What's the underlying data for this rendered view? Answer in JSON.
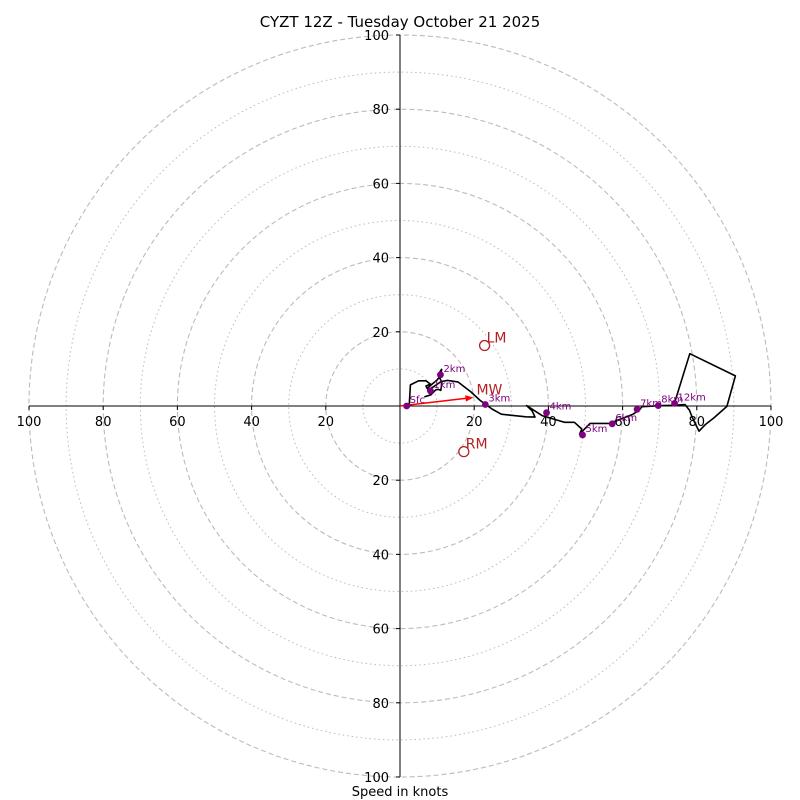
{
  "chart_data": {
    "type": "hodograph",
    "title": "CYZT 12Z - Tuesday October 21 2025",
    "xlabel": "Speed in knots",
    "xlim": [
      -100,
      100
    ],
    "ylim": [
      -100,
      100
    ],
    "ring_major": [
      20,
      40,
      60,
      80,
      100
    ],
    "ring_minor": [
      10,
      30,
      50,
      70,
      90
    ],
    "ticks": {
      "x": [
        {
          "v": -100,
          "label": "100"
        },
        {
          "v": -80,
          "label": "80"
        },
        {
          "v": -60,
          "label": "60"
        },
        {
          "v": -40,
          "label": "40"
        },
        {
          "v": -20,
          "label": "20"
        },
        {
          "v": 20,
          "label": "20"
        },
        {
          "v": 40,
          "label": "40"
        },
        {
          "v": 60,
          "label": "60"
        },
        {
          "v": 80,
          "label": "80"
        },
        {
          "v": 100,
          "label": "100"
        }
      ],
      "y": [
        {
          "v": 100,
          "label": "100"
        },
        {
          "v": 80,
          "label": "80"
        },
        {
          "v": 60,
          "label": "60"
        },
        {
          "v": 40,
          "label": "40"
        },
        {
          "v": 20,
          "label": "20"
        },
        {
          "v": -20,
          "label": "20"
        },
        {
          "v": -40,
          "label": "40"
        },
        {
          "v": -60,
          "label": "60"
        },
        {
          "v": -80,
          "label": "80"
        },
        {
          "v": -100,
          "label": "100"
        }
      ]
    },
    "wind_profile": [
      [
        1.8,
        0
      ],
      [
        2.5,
        0.5
      ],
      [
        2.8,
        5.7
      ],
      [
        5,
        6.8
      ],
      [
        7,
        6.8
      ],
      [
        8.2,
        5.9
      ],
      [
        7,
        5.4
      ],
      [
        7.8,
        3.8
      ],
      [
        7.3,
        4.8
      ],
      [
        10,
        7
      ],
      [
        11,
        8.3
      ],
      [
        11.2,
        9.9
      ],
      [
        10.3,
        8.5
      ],
      [
        11.3,
        6.3
      ],
      [
        11,
        4.2
      ],
      [
        10.3,
        4.5
      ],
      [
        9.6,
        4.3
      ],
      [
        8.3,
        3
      ],
      [
        6.7,
        2.5
      ],
      [
        8.2,
        3
      ],
      [
        8,
        4.5
      ],
      [
        11.1,
        6.6
      ],
      [
        12.8,
        6.9
      ],
      [
        15.6,
        6.5
      ],
      [
        19.1,
        3.8
      ],
      [
        21.6,
        1.5
      ],
      [
        24.8,
        -0.8
      ],
      [
        27.3,
        -2.2
      ],
      [
        33.9,
        -2.9
      ],
      [
        36.4,
        -3
      ],
      [
        35.6,
        -1.3
      ],
      [
        34.1,
        0.1
      ],
      [
        38.3,
        -2.6
      ],
      [
        42.7,
        -3.9
      ],
      [
        44.4,
        -4.4
      ],
      [
        47,
        -4.4
      ],
      [
        49,
        -6.2
      ],
      [
        48.4,
        -7.6
      ],
      [
        51.2,
        -4.7
      ],
      [
        56.5,
        -4.7
      ],
      [
        62.8,
        -2.2
      ],
      [
        64.5,
        -1.1
      ],
      [
        65.2,
        -0.2
      ],
      [
        70.8,
        0.1
      ],
      [
        73.8,
        0.2
      ],
      [
        76.8,
        0.4
      ],
      [
        78,
        -1.1
      ],
      [
        78.8,
        -3.1
      ],
      [
        80.6,
        -6.8
      ],
      [
        82.4,
        -4.9
      ],
      [
        84.6,
        -3.2
      ],
      [
        88.1,
        -0.1
      ],
      [
        90.4,
        8.1
      ],
      [
        78.1,
        14.1
      ],
      [
        73.8,
        0.2
      ]
    ],
    "height_markers": [
      {
        "label": "Sfc",
        "u": 1.8,
        "v": 0
      },
      {
        "label": "1km",
        "u": 8.2,
        "v": 4.1
      },
      {
        "label": "2km",
        "u": 10.9,
        "v": 8.4
      },
      {
        "label": "3km",
        "u": 23,
        "v": 0.4
      },
      {
        "label": "4km",
        "u": 39.5,
        "v": -1.8
      },
      {
        "label": "5km",
        "u": 49.2,
        "v": -7.8
      },
      {
        "label": "6km",
        "u": 57.2,
        "v": -4.8
      },
      {
        "label": "7km",
        "u": 63.9,
        "v": -0.9
      },
      {
        "label": "8km",
        "u": 69.6,
        "v": 0.1
      },
      {
        "label": "12km",
        "u": 74,
        "v": 0.7
      }
    ],
    "storm_motion": [
      {
        "label": "LM",
        "u": 22.8,
        "v": 16.3
      },
      {
        "label": "RM",
        "u": 17.2,
        "v": -12.3
      }
    ],
    "mean_wind": {
      "label": "MW",
      "u": 19.8,
      "v": 2.3
    },
    "colors": {
      "rings": "#bbbbbb",
      "profile": "#000000",
      "markers": "#800080",
      "storm": "#b22222",
      "mean_wind_arrow": "#ff0000"
    }
  }
}
